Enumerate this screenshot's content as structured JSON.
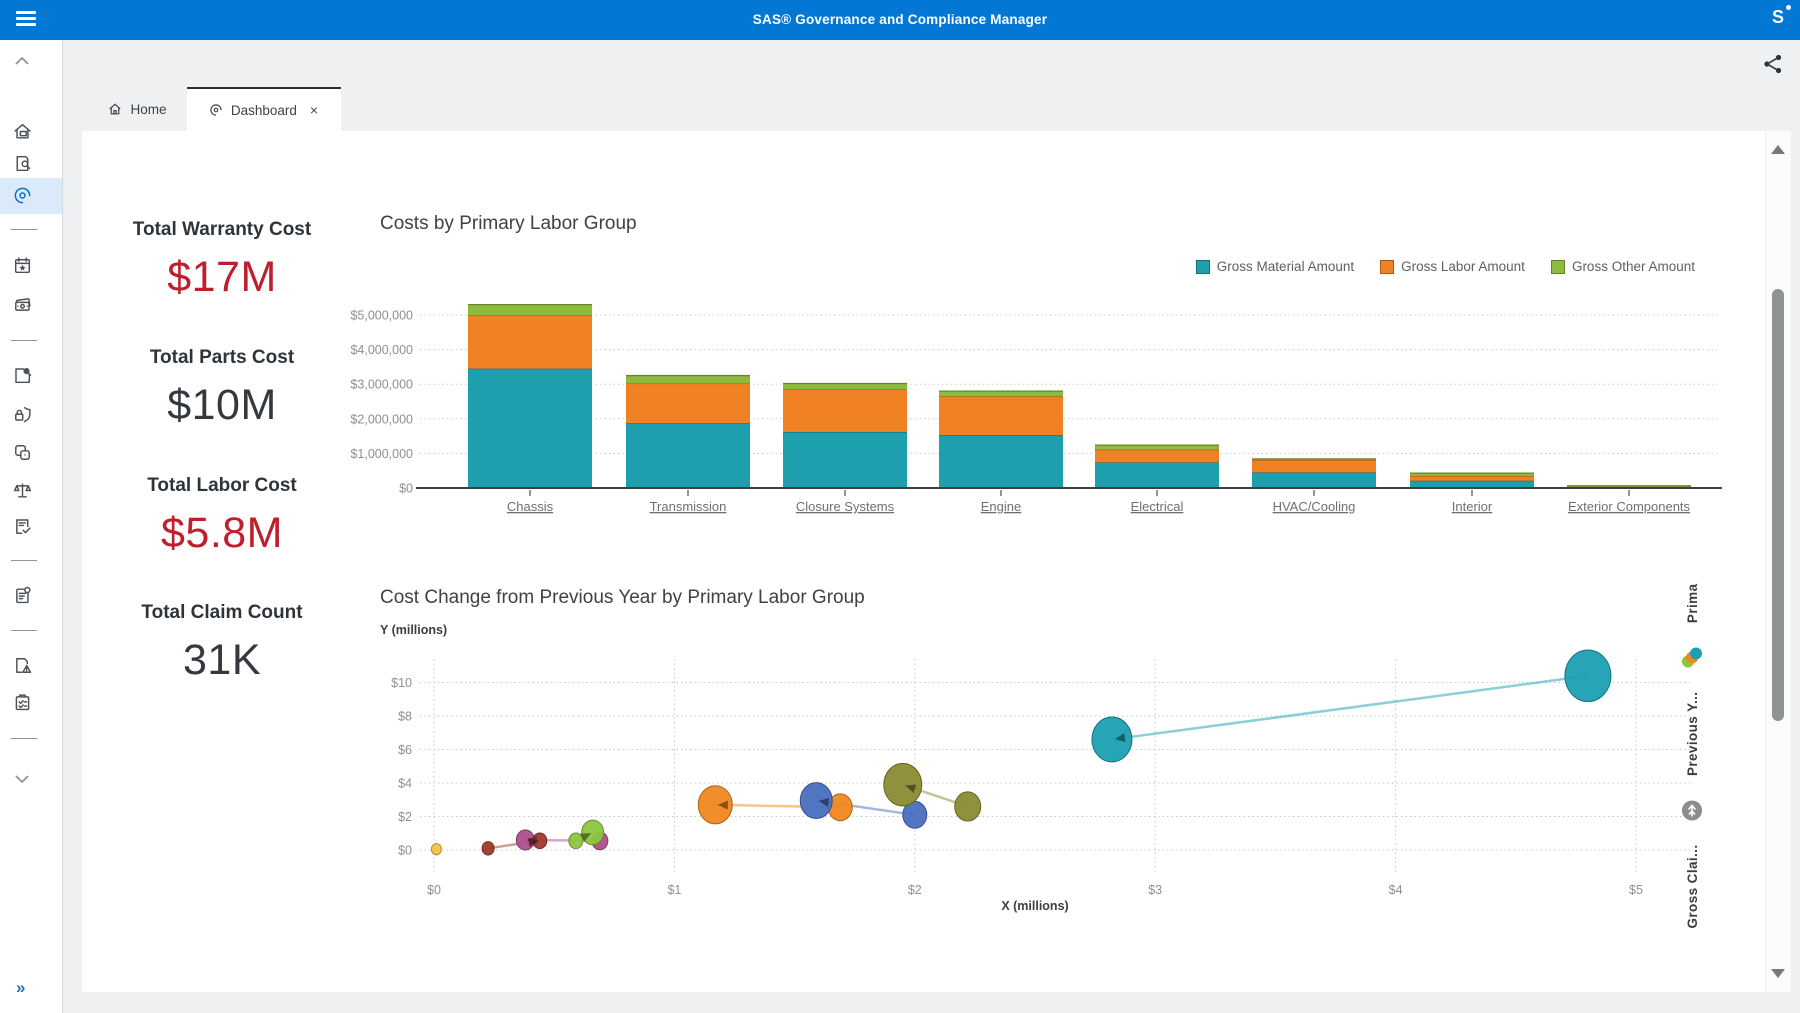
{
  "app": {
    "title": "SAS® Governance and Compliance Manager",
    "logo": "S"
  },
  "tabs": {
    "home": {
      "label": "Home"
    },
    "dashboard": {
      "label": "Dashboard",
      "close": "×",
      "active": true
    }
  },
  "sidebar": {
    "expand_glyph": "»",
    "items": [
      "scroll-up",
      "home-report",
      "document-search",
      "dashboard-gauge",
      "calendar-star",
      "money",
      "page-search",
      "shield-lock",
      "copy-items",
      "balance-scale",
      "document-check",
      "document-info",
      "document-warning",
      "clipboard-check",
      "scroll-down",
      "expand"
    ]
  },
  "kpis": [
    {
      "label": "Total Warranty Cost",
      "value": "$17M",
      "color": "#bf1f2d"
    },
    {
      "label": "Total Parts Cost",
      "value": "$10M",
      "color": "#34393f"
    },
    {
      "label": "Total Labor Cost",
      "value": "$5.8M",
      "color": "#bf1f2d"
    },
    {
      "label": "Total Claim Count",
      "value": "31K",
      "color": "#34393f"
    }
  ],
  "chart_data": [
    {
      "type": "bar",
      "stacked": true,
      "title": "Costs by Primary Labor Group",
      "categories": [
        "Chassis",
        "Transmission",
        "Closure Systems",
        "Engine",
        "Electrical",
        "HVAC/Cooling",
        "Interior",
        "Exterior Components"
      ],
      "series": [
        {
          "name": "Gross Material Amount",
          "color": "#1d9fae",
          "values": [
            3450000,
            1870000,
            1620000,
            1530000,
            740000,
            450000,
            210000,
            20000
          ]
        },
        {
          "name": "Gross Labor Amount",
          "color": "#f08124",
          "values": [
            1550000,
            1150000,
            1230000,
            1120000,
            370000,
            360000,
            140000,
            20000
          ]
        },
        {
          "name": "Gross Other Amount",
          "color": "#8cbb3e",
          "values": [
            300000,
            230000,
            170000,
            150000,
            130000,
            30000,
            80000,
            25000
          ]
        }
      ],
      "ylim": [
        0,
        5000000
      ],
      "yticks": [
        "$0",
        "$1,000,000",
        "$2,000,000",
        "$3,000,000",
        "$4,000,000",
        "$5,000,000"
      ],
      "grid": "dotted-horizontal",
      "legend_position": "top-right"
    },
    {
      "type": "scatter",
      "title": "Cost Change from Previous Year by Primary Labor Group",
      "xlabel": "X (millions)",
      "ylabel": "Y (millions)",
      "xlim": [
        0,
        5
      ],
      "ylim": [
        0,
        10
      ],
      "xticks": [
        "$0",
        "$1",
        "$2",
        "$3",
        "$4",
        "$5"
      ],
      "yticks": [
        "$0",
        "$2",
        "$4",
        "$6",
        "$8",
        "$10"
      ],
      "grid": "dotted-both",
      "groups": [
        {
          "name": "teal",
          "color": "#1ba0b2",
          "current": {
            "x": 2.82,
            "y": 6.6,
            "r": 20
          },
          "previous": {
            "x": 4.8,
            "y": 10.4,
            "r": 23
          }
        },
        {
          "name": "olive",
          "color": "#8a8a33",
          "current": {
            "x": 1.95,
            "y": 3.9,
            "r": 19
          },
          "previous": {
            "x": 2.22,
            "y": 2.6,
            "r": 13
          }
        },
        {
          "name": "blue",
          "color": "#4a6fc0",
          "current": {
            "x": 1.59,
            "y": 2.95,
            "r": 16
          },
          "previous": {
            "x": 2.0,
            "y": 2.1,
            "r": 12
          }
        },
        {
          "name": "orange",
          "color": "#f0871f",
          "current": {
            "x": 1.17,
            "y": 2.7,
            "r": 17
          },
          "previous": {
            "x": 1.69,
            "y": 2.55,
            "r": 12
          }
        },
        {
          "name": "green",
          "color": "#8dc63f",
          "current": {
            "x": 0.66,
            "y": 1.05,
            "r": 11
          },
          "previous": {
            "x": 0.59,
            "y": 0.55,
            "r": 7
          }
        },
        {
          "name": "plum",
          "color": "#ae4f8e",
          "current": {
            "x": 0.38,
            "y": 0.6,
            "r": 9
          },
          "previous": {
            "x": 0.69,
            "y": 0.55,
            "r": 8
          }
        },
        {
          "name": "darkred",
          "color": "#a03a2a",
          "current": {
            "x": 0.44,
            "y": 0.55,
            "r": 7
          },
          "previous": {
            "x": 0.225,
            "y": 0.1,
            "r": 6
          }
        },
        {
          "name": "yellow",
          "color": "#f5c245",
          "current": {
            "x": 0.01,
            "y": 0.05,
            "r": 5
          },
          "previous": null
        }
      ],
      "right_legend": {
        "size": "Gross Clai...",
        "arrow": "Previous Y...",
        "color": "Prima"
      }
    }
  ]
}
